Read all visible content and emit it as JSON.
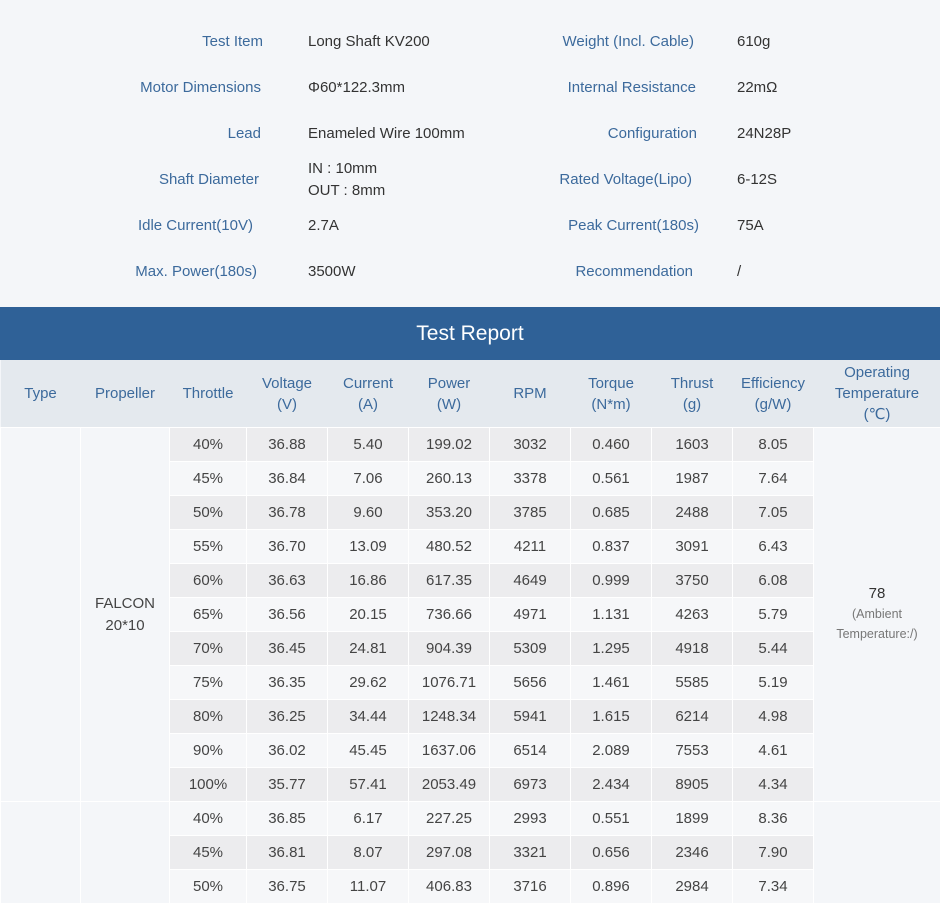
{
  "specs": {
    "left": [
      {
        "label": "Test Item",
        "value": "Long Shaft KV200"
      },
      {
        "label": "Motor Dimensions",
        "value": "Φ60*122.3mm"
      },
      {
        "label": "Lead",
        "value": "Enameled Wire 100mm"
      },
      {
        "label": "Shaft Diameter",
        "value_line1": "IN : 10mm",
        "value_line2": "OUT : 8mm"
      },
      {
        "label": "Idle Current(10V)",
        "value": "2.7A"
      },
      {
        "label": "Max. Power(180s)",
        "value": "3500W"
      }
    ],
    "right": [
      {
        "label": "Weight (Incl. Cable)",
        "value": "610g"
      },
      {
        "label": "Internal Resistance",
        "value": "22mΩ"
      },
      {
        "label": "Configuration",
        "value": "24N28P"
      },
      {
        "label": "Rated Voltage(Lipo)",
        "value": "6-12S"
      },
      {
        "label": "Peak Current(180s)",
        "value": "75A"
      },
      {
        "label": "Recommendation",
        "value": "/"
      }
    ]
  },
  "report": {
    "title": "Test Report",
    "headers": {
      "type": "Type",
      "propeller": "Propeller",
      "throttle": "Throttle",
      "voltage_1": "Voltage",
      "voltage_2": "(V)",
      "current_1": "Current",
      "current_2": "(A)",
      "power_1": "Power",
      "power_2": "(W)",
      "rpm": "RPM",
      "torque_1": "Torque",
      "torque_2": "(N*m)",
      "thrust_1": "Thrust",
      "thrust_2": "(g)",
      "efficiency_1": "Efficiency",
      "efficiency_2": "(g/W)",
      "temp_1": "Operating",
      "temp_2": "Temperature",
      "temp_3": "(℃)"
    },
    "group1": {
      "propeller_line1": "FALCON",
      "propeller_line2": "20*10",
      "temperature": "78",
      "temperature_note1": "(Ambient",
      "temperature_note2": "Temperature:/)",
      "rows": [
        [
          "40%",
          "36.88",
          "5.40",
          "199.02",
          "3032",
          "0.460",
          "1603",
          "8.05"
        ],
        [
          "45%",
          "36.84",
          "7.06",
          "260.13",
          "3378",
          "0.561",
          "1987",
          "7.64"
        ],
        [
          "50%",
          "36.78",
          "9.60",
          "353.20",
          "3785",
          "0.685",
          "2488",
          "7.05"
        ],
        [
          "55%",
          "36.70",
          "13.09",
          "480.52",
          "4211",
          "0.837",
          "3091",
          "6.43"
        ],
        [
          "60%",
          "36.63",
          "16.86",
          "617.35",
          "4649",
          "0.999",
          "3750",
          "6.08"
        ],
        [
          "65%",
          "36.56",
          "20.15",
          "736.66",
          "4971",
          "1.131",
          "4263",
          "5.79"
        ],
        [
          "70%",
          "36.45",
          "24.81",
          "904.39",
          "5309",
          "1.295",
          "4918",
          "5.44"
        ],
        [
          "75%",
          "36.35",
          "29.62",
          "1076.71",
          "5656",
          "1.461",
          "5585",
          "5.19"
        ],
        [
          "80%",
          "36.25",
          "34.44",
          "1248.34",
          "5941",
          "1.615",
          "6214",
          "4.98"
        ],
        [
          "90%",
          "36.02",
          "45.45",
          "1637.06",
          "6514",
          "2.089",
          "7553",
          "4.61"
        ],
        [
          "100%",
          "35.77",
          "57.41",
          "2053.49",
          "6973",
          "2.434",
          "8905",
          "4.34"
        ]
      ]
    },
    "group2": {
      "rows": [
        [
          "40%",
          "36.85",
          "6.17",
          "227.25",
          "2993",
          "0.551",
          "1899",
          "8.36"
        ],
        [
          "45%",
          "36.81",
          "8.07",
          "297.08",
          "3321",
          "0.656",
          "2346",
          "7.90"
        ],
        [
          "50%",
          "36.75",
          "11.07",
          "406.83",
          "3716",
          "0.896",
          "2984",
          "7.34"
        ]
      ]
    }
  }
}
